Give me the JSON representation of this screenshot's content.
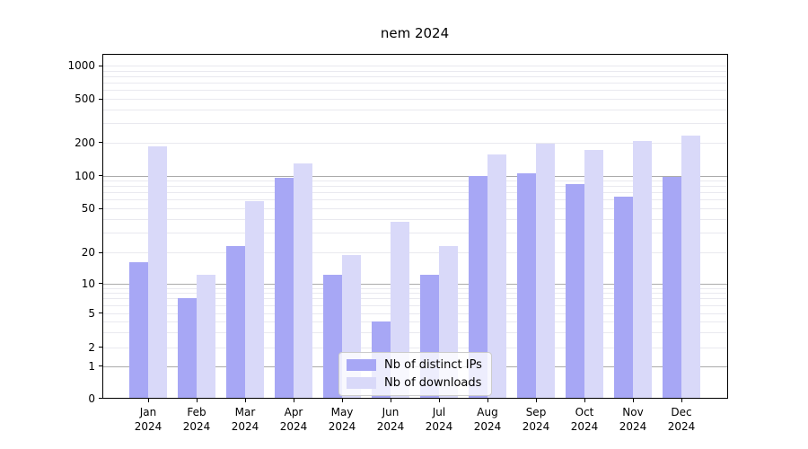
{
  "title": "nem 2024",
  "chart_data": {
    "type": "bar",
    "title": "nem 2024",
    "categories": [
      "Jan 2024",
      "Feb 2024",
      "Mar 2024",
      "Apr 2024",
      "May 2024",
      "Jun 2024",
      "Jul 2024",
      "Aug 2024",
      "Sep 2024",
      "Oct 2024",
      "Nov 2024",
      "Dec 2024"
    ],
    "category_months": [
      "Jan",
      "Feb",
      "Mar",
      "Apr",
      "May",
      "Jun",
      "Jul",
      "Aug",
      "Sep",
      "Oct",
      "Nov",
      "Dec"
    ],
    "category_year": "2024",
    "series": [
      {
        "name": "Nb of distinct IPs",
        "color": "#a7a7f5",
        "values": [
          16,
          7,
          23,
          95,
          12,
          4,
          12,
          100,
          105,
          84,
          64,
          97
        ]
      },
      {
        "name": "Nb of downloads",
        "color": "#d9d9f9",
        "values": [
          185,
          12,
          58,
          128,
          19,
          38,
          23,
          155,
          195,
          172,
          205,
          230
        ]
      }
    ],
    "yscale": "symlog",
    "ytick_values": [
      0,
      1,
      2,
      5,
      10,
      20,
      50,
      100,
      200,
      500,
      1000
    ],
    "ytick_labels": [
      "0",
      "1",
      "2",
      "5",
      "10",
      "20",
      "50",
      "100",
      "200",
      "500",
      "1000"
    ],
    "ylim": [
      0,
      1000
    ],
    "grid": true,
    "legend_position": "lower center",
    "colors": {
      "major_grid": "#ababab",
      "minor_grid": "#e9e9ef",
      "axis": "#000000",
      "text": "#000000",
      "background": "#ffffff"
    }
  }
}
